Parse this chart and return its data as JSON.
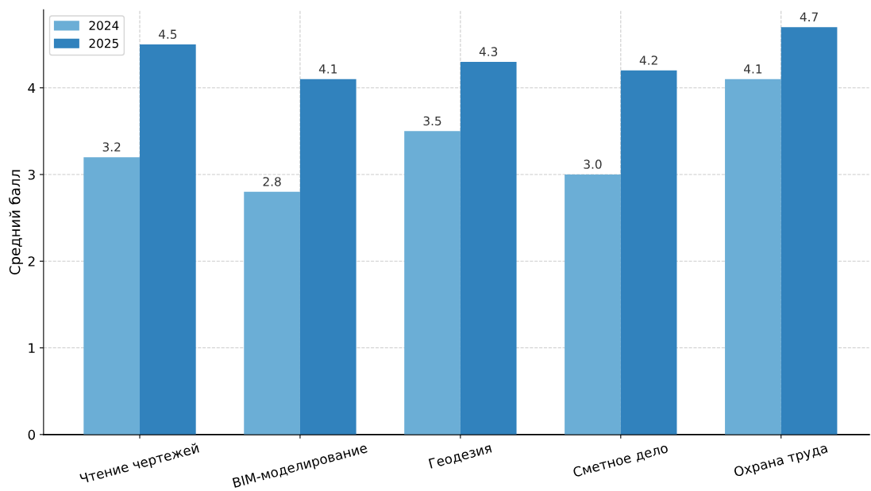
{
  "chart_data": {
    "type": "bar",
    "ylabel": "Средний балл",
    "categories": [
      "Чтение чертежей",
      "BIM-моделирование",
      "Геодезия",
      "Сметное дело",
      "Охрана труда"
    ],
    "series": [
      {
        "name": "2024",
        "color": "#6baed6",
        "values": [
          3.2,
          2.8,
          3.5,
          3.0,
          4.1
        ],
        "value_labels": [
          "3.2",
          "2.8",
          "3.5",
          "3.0",
          "4.1"
        ]
      },
      {
        "name": "2025",
        "color": "#3182bd",
        "values": [
          4.5,
          4.1,
          4.3,
          4.2,
          4.7
        ],
        "value_labels": [
          "4.5",
          "4.1",
          "4.3",
          "4.2",
          "4.7"
        ]
      }
    ],
    "ylim": [
      0,
      4.9
    ],
    "yticks": [
      0,
      1,
      2,
      3,
      4
    ],
    "grid": true,
    "legend": "top left"
  }
}
